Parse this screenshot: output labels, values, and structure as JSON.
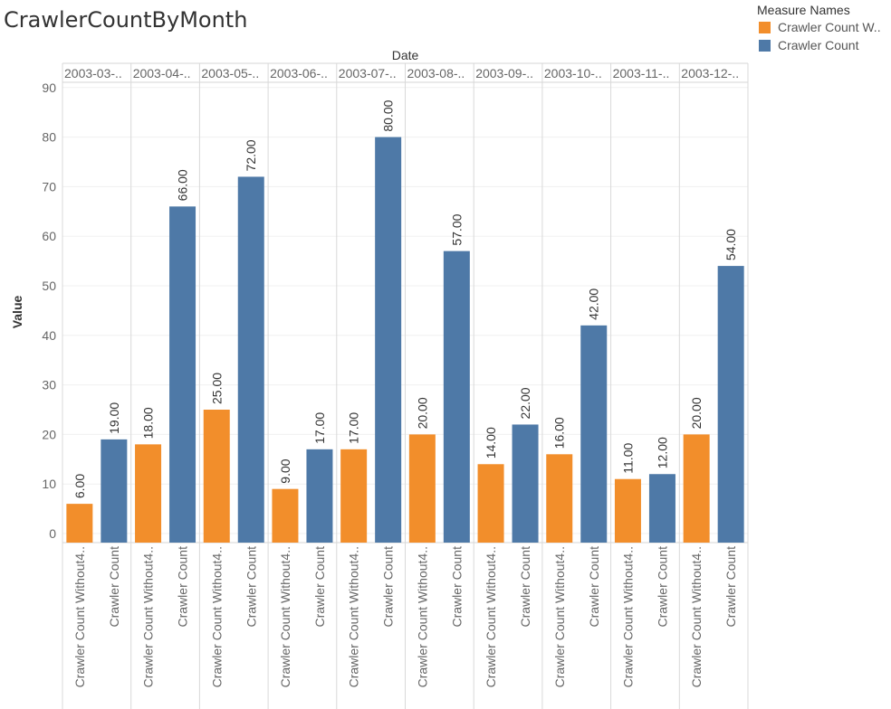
{
  "chart_data": {
    "type": "bar",
    "title": "CrawlerCountByMonth",
    "column_header": "Date",
    "ylabel": "Value",
    "ylim": [
      0,
      90
    ],
    "yticks": [
      0,
      10,
      20,
      30,
      40,
      50,
      60,
      70,
      80,
      90
    ],
    "grid": true,
    "legend_position": "top-right",
    "legend_title": "Measure Names",
    "legend_items": [
      {
        "label": "Crawler Count W..",
        "color": "#f28e2b"
      },
      {
        "label": "Crawler Count",
        "color": "#4e79a7"
      }
    ],
    "categories": [
      "2003-03-..",
      "2003-04-..",
      "2003-05-..",
      "2003-06-..",
      "2003-07-..",
      "2003-08-..",
      "2003-09-..",
      "2003-10-..",
      "2003-11-..",
      "2003-12-.."
    ],
    "measure_axis_labels": [
      "Crawler Count Without4..",
      "Crawler Count"
    ],
    "series": [
      {
        "name": "Crawler Count W..",
        "color": "#f28e2b",
        "values": [
          6,
          18,
          25,
          9,
          17,
          20,
          14,
          16,
          11,
          20
        ],
        "labels": [
          "6.00",
          "18.00",
          "25.00",
          "9.00",
          "17.00",
          "20.00",
          "14.00",
          "16.00",
          "11.00",
          "20.00"
        ]
      },
      {
        "name": "Crawler Count",
        "color": "#4e79a7",
        "values": [
          19,
          66,
          72,
          17,
          80,
          57,
          22,
          42,
          12,
          54
        ],
        "labels": [
          "19.00",
          "66.00",
          "72.00",
          "17.00",
          "80.00",
          "57.00",
          "22.00",
          "42.00",
          "12.00",
          "54.00"
        ]
      }
    ]
  }
}
